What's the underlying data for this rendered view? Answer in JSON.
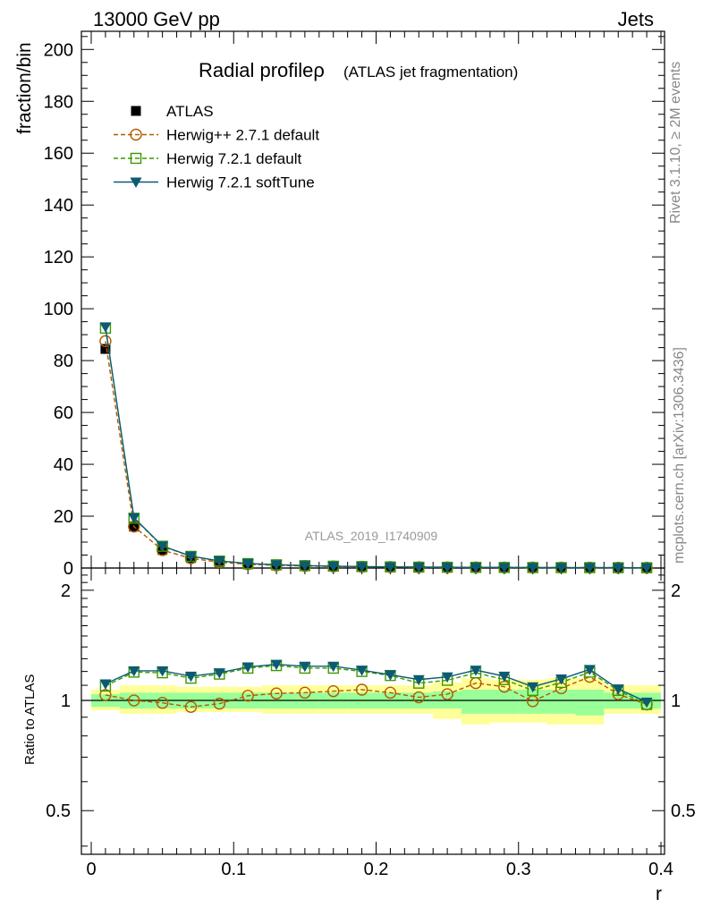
{
  "header": {
    "left": "13000 GeV pp",
    "right": "Jets"
  },
  "side": {
    "version": "Rivet 3.1.10, ≥ 2M events",
    "site": "mcplots.cern.ch [arXiv:1306.3436]"
  },
  "chart_data": [
    {
      "type": "line",
      "title": "Radial profileρ",
      "subtitle": "(ATLAS jet fragmentation)",
      "watermark": "ATLAS_2019_I1740909",
      "xlabel": "r",
      "ylabel": "fraction/bin",
      "xlim": [
        0,
        0.4
      ],
      "ylim": [
        0,
        207
      ],
      "x_ticks": [
        "0",
        "0.1",
        "0.2",
        "0.3",
        "0.4"
      ],
      "y_ticks": [
        "0",
        "20",
        "40",
        "60",
        "80",
        "100",
        "120",
        "140",
        "160",
        "180",
        "200"
      ],
      "legend_position": "top-left",
      "x": [
        0.01,
        0.03,
        0.05,
        0.07,
        0.09,
        0.11,
        0.13,
        0.15,
        0.17,
        0.19,
        0.21,
        0.23,
        0.25,
        0.27,
        0.29,
        0.31,
        0.33,
        0.35,
        0.37,
        0.39
      ],
      "series": [
        {
          "name": "ATLAS",
          "color": "#000000",
          "marker": "square-filled",
          "line": "none",
          "values": [
            84.5,
            16.0,
            7.0,
            3.9,
            2.3,
            1.4,
            1.0,
            0.75,
            0.58,
            0.45,
            0.37,
            0.3,
            0.26,
            0.22,
            0.19,
            0.17,
            0.15,
            0.13,
            0.12,
            0.11
          ]
        },
        {
          "name": "Herwig++ 2.7.1 default",
          "color": "#b35900",
          "marker": "circle-open",
          "line": "dashed",
          "values": [
            87.5,
            16.0,
            6.9,
            3.75,
            2.25,
            1.45,
            1.05,
            0.79,
            0.61,
            0.48,
            0.39,
            0.31,
            0.27,
            0.24,
            0.2,
            0.17,
            0.16,
            0.15,
            0.12,
            0.11
          ]
        },
        {
          "name": "Herwig 7.2.1 default",
          "color": "#3a9900",
          "marker": "square-open",
          "line": "dashed",
          "values": [
            92.5,
            19.2,
            8.4,
            4.5,
            2.7,
            1.72,
            1.25,
            0.92,
            0.71,
            0.55,
            0.43,
            0.34,
            0.3,
            0.26,
            0.22,
            0.18,
            0.17,
            0.15,
            0.13,
            0.11
          ]
        },
        {
          "name": "Herwig 7.2.1 softTune",
          "color": "#0c5a73",
          "marker": "triangle-down-filled",
          "line": "solid",
          "values": [
            93.0,
            19.4,
            8.5,
            4.6,
            2.75,
            1.75,
            1.27,
            0.94,
            0.72,
            0.55,
            0.44,
            0.35,
            0.3,
            0.27,
            0.22,
            0.19,
            0.17,
            0.16,
            0.13,
            0.11
          ]
        }
      ]
    },
    {
      "type": "line",
      "ylabel": "Ratio to ATLAS",
      "xlabel": "r",
      "xlim": [
        0,
        0.4
      ],
      "ylim": [
        0.38,
        2.3
      ],
      "y_scale": "log",
      "y_ticks": [
        "0.5",
        "1",
        "2"
      ],
      "reference": 1,
      "x": [
        0.01,
        0.03,
        0.05,
        0.07,
        0.09,
        0.11,
        0.13,
        0.15,
        0.17,
        0.19,
        0.21,
        0.23,
        0.25,
        0.27,
        0.29,
        0.31,
        0.33,
        0.35,
        0.37,
        0.39
      ],
      "bins": [
        [
          0.0,
          0.02
        ],
        [
          0.02,
          0.04
        ],
        [
          0.04,
          0.06
        ],
        [
          0.06,
          0.08
        ],
        [
          0.08,
          0.1
        ],
        [
          0.1,
          0.12
        ],
        [
          0.12,
          0.14
        ],
        [
          0.14,
          0.16
        ],
        [
          0.16,
          0.18
        ],
        [
          0.18,
          0.2
        ],
        [
          0.2,
          0.22
        ],
        [
          0.22,
          0.24
        ],
        [
          0.24,
          0.26
        ],
        [
          0.26,
          0.28
        ],
        [
          0.28,
          0.3
        ],
        [
          0.3,
          0.32
        ],
        [
          0.32,
          0.34
        ],
        [
          0.34,
          0.36
        ],
        [
          0.36,
          0.38
        ],
        [
          0.38,
          0.4
        ]
      ],
      "band_stat": {
        "color": "#99ff99",
        "lo": [
          0.96,
          0.95,
          0.95,
          0.95,
          0.95,
          0.95,
          0.95,
          0.95,
          0.95,
          0.95,
          0.95,
          0.95,
          0.95,
          0.92,
          0.92,
          0.92,
          0.92,
          0.91,
          0.95,
          0.95
        ],
        "hi": [
          1.04,
          1.05,
          1.05,
          1.05,
          1.05,
          1.05,
          1.05,
          1.05,
          1.05,
          1.05,
          1.05,
          1.05,
          1.06,
          1.07,
          1.07,
          1.07,
          1.07,
          1.07,
          1.05,
          1.05
        ]
      },
      "band_total": {
        "color": "#ffff99",
        "lo": [
          0.94,
          0.92,
          0.92,
          0.93,
          0.93,
          0.93,
          0.92,
          0.92,
          0.92,
          0.92,
          0.92,
          0.92,
          0.89,
          0.86,
          0.87,
          0.87,
          0.86,
          0.86,
          0.92,
          0.92
        ],
        "hi": [
          1.07,
          1.1,
          1.1,
          1.09,
          1.09,
          1.09,
          1.1,
          1.1,
          1.1,
          1.1,
          1.1,
          1.1,
          1.12,
          1.15,
          1.14,
          1.14,
          1.15,
          1.15,
          1.1,
          1.1
        ]
      },
      "series": [
        {
          "name": "Herwig++ 2.7.1 default",
          "color": "#b35900",
          "marker": "circle-open",
          "line": "dashed",
          "values": [
            1.035,
            1.0,
            0.985,
            0.96,
            0.98,
            1.03,
            1.045,
            1.05,
            1.06,
            1.07,
            1.05,
            1.02,
            1.04,
            1.115,
            1.09,
            0.995,
            1.08,
            1.16,
            1.04,
            0.975
          ]
        },
        {
          "name": "Herwig 7.2.1 default",
          "color": "#3a9900",
          "marker": "square-open",
          "line": "dashed",
          "values": [
            1.095,
            1.195,
            1.19,
            1.15,
            1.18,
            1.225,
            1.245,
            1.225,
            1.225,
            1.2,
            1.17,
            1.115,
            1.135,
            1.19,
            1.14,
            1.065,
            1.12,
            1.195,
            1.065,
            0.975
          ]
        },
        {
          "name": "Herwig 7.2.1 softTune",
          "color": "#0c5a73",
          "marker": "triangle-down-filled",
          "line": "solid",
          "values": [
            1.11,
            1.205,
            1.205,
            1.165,
            1.19,
            1.235,
            1.255,
            1.24,
            1.24,
            1.21,
            1.175,
            1.14,
            1.16,
            1.21,
            1.165,
            1.09,
            1.145,
            1.215,
            1.075,
            0.99
          ]
        }
      ]
    }
  ]
}
